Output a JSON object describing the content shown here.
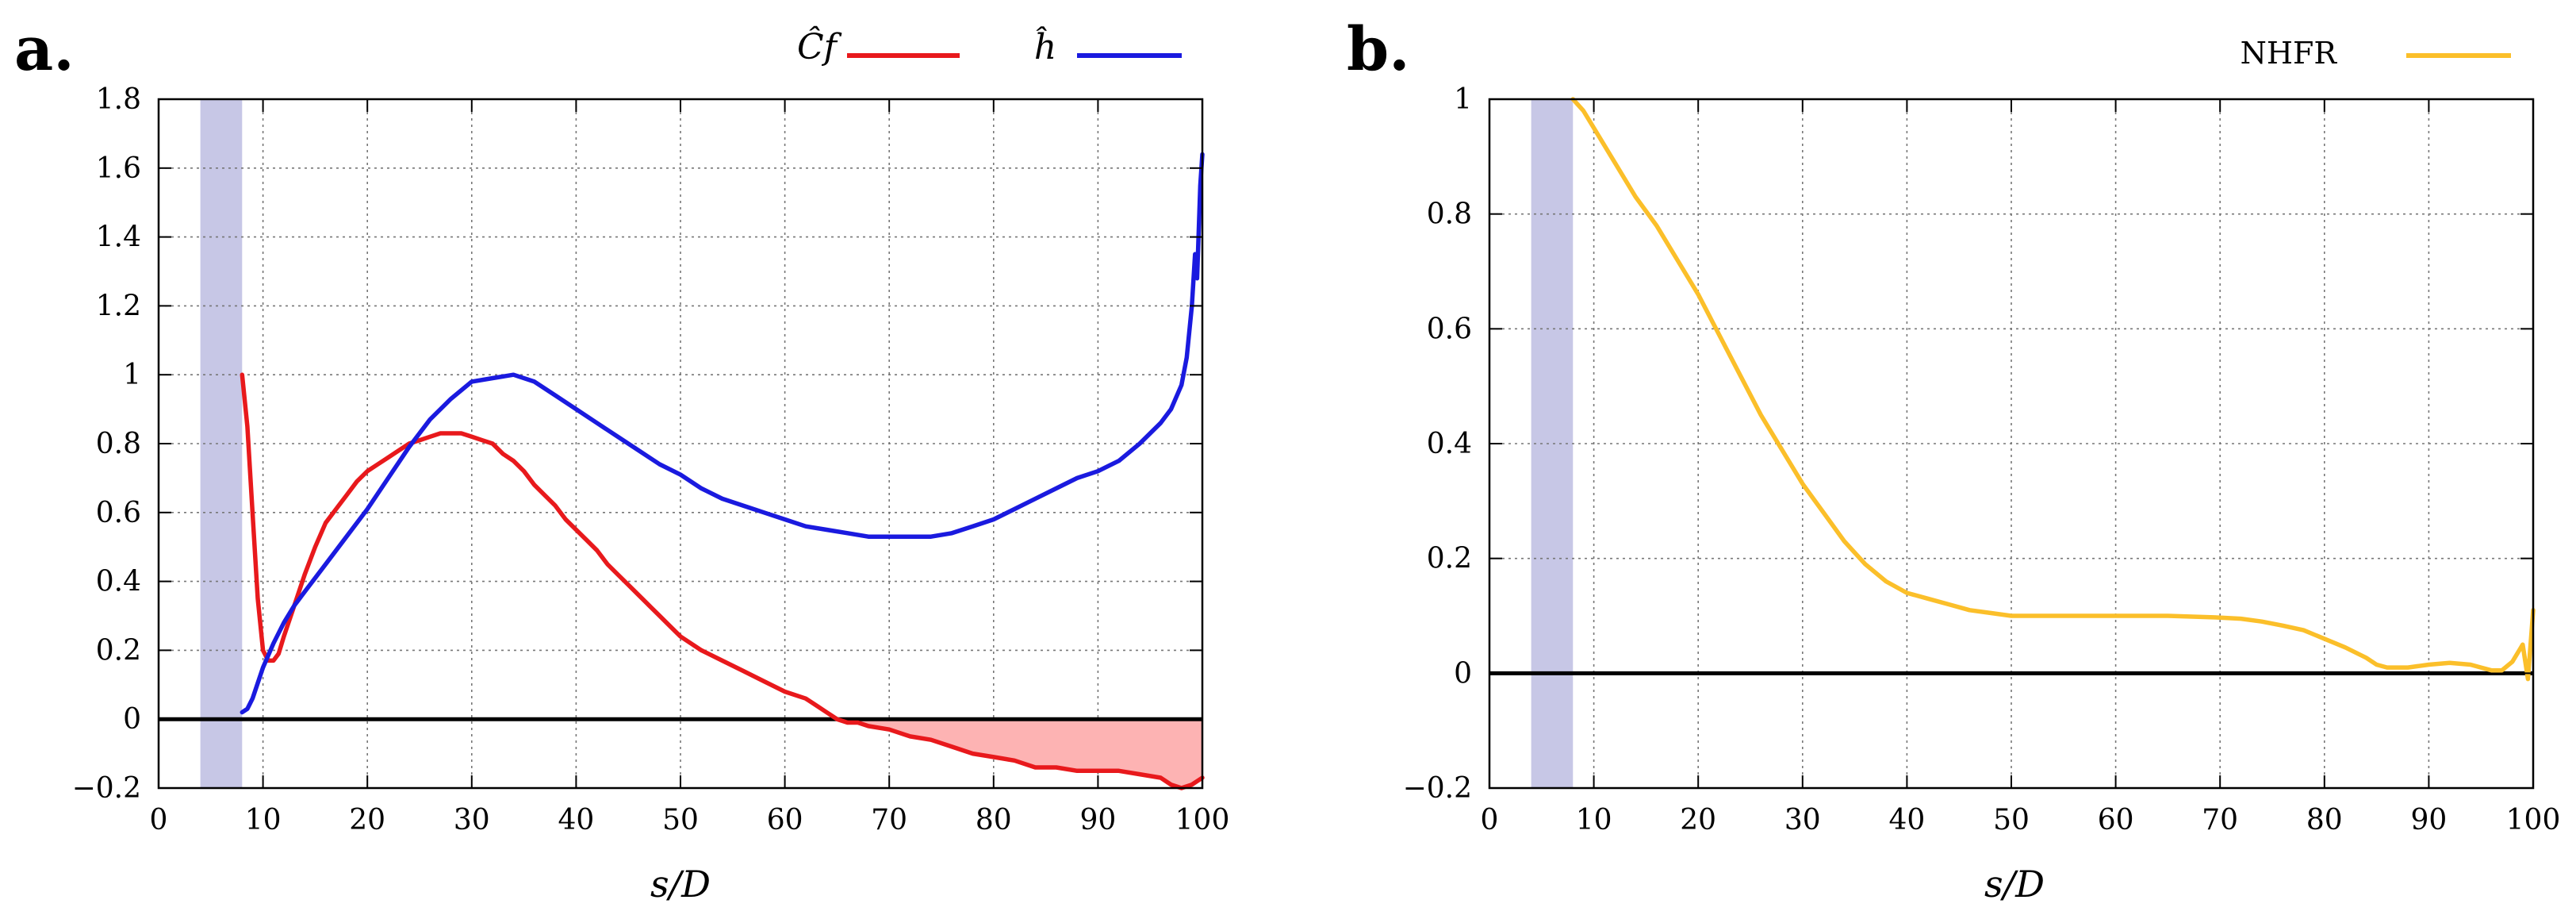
{
  "colors": {
    "cf": "#e8191c",
    "h": "#1a1adf",
    "nhfr": "#fbbf2a",
    "shade": "#c7c7e6",
    "negfill": "#fdb3b3",
    "grid": "#777777",
    "zero": "#000000"
  },
  "chart_data": [
    {
      "type": "line",
      "panel_label": "a.",
      "xlabel": "s/D",
      "xlim": [
        0,
        100
      ],
      "ylim": [
        -0.2,
        1.8
      ],
      "xticks": [
        0,
        10,
        20,
        30,
        40,
        50,
        60,
        70,
        80,
        90,
        100
      ],
      "yticks": [
        -0.2,
        0,
        0.2,
        0.4,
        0.6,
        0.8,
        1,
        1.2,
        1.4,
        1.6,
        1.8
      ],
      "ytick_labels": [
        "−0.2",
        "0",
        "0.2",
        "0.4",
        "0.6",
        "0.8",
        "1",
        "1.2",
        "1.4",
        "1.6",
        "1.8"
      ],
      "grid": true,
      "shaded_band_x": [
        4,
        8
      ],
      "zero_line": true,
      "negative_fill_series": "Cf",
      "legend_position": "top-right",
      "series": [
        {
          "name": "Cf",
          "legend": "Ĉf",
          "color_key": "cf",
          "x": [
            8,
            8.5,
            9,
            9.5,
            10,
            10.5,
            11,
            11.5,
            12,
            13,
            14,
            15,
            16,
            17,
            18,
            19,
            20,
            21,
            22,
            23,
            24,
            25,
            26,
            27,
            28,
            29,
            30,
            31,
            32,
            33,
            34,
            35,
            36,
            37,
            38,
            39,
            40,
            41,
            42,
            43,
            44,
            45,
            46,
            47,
            48,
            49,
            50,
            52,
            54,
            56,
            58,
            60,
            62,
            63,
            64,
            65,
            66,
            67,
            68,
            70,
            72,
            74,
            76,
            78,
            80,
            82,
            84,
            86,
            88,
            90,
            92,
            94,
            96,
            97,
            98,
            99,
            100
          ],
          "values": [
            1.0,
            0.85,
            0.6,
            0.35,
            0.2,
            0.17,
            0.17,
            0.19,
            0.24,
            0.33,
            0.42,
            0.5,
            0.57,
            0.61,
            0.65,
            0.69,
            0.72,
            0.74,
            0.76,
            0.78,
            0.8,
            0.81,
            0.82,
            0.83,
            0.83,
            0.83,
            0.82,
            0.81,
            0.8,
            0.77,
            0.75,
            0.72,
            0.68,
            0.65,
            0.62,
            0.58,
            0.55,
            0.52,
            0.49,
            0.45,
            0.42,
            0.39,
            0.36,
            0.33,
            0.3,
            0.27,
            0.24,
            0.2,
            0.17,
            0.14,
            0.11,
            0.08,
            0.06,
            0.04,
            0.02,
            0.0,
            -0.01,
            -0.01,
            -0.02,
            -0.03,
            -0.05,
            -0.06,
            -0.08,
            -0.1,
            -0.11,
            -0.12,
            -0.14,
            -0.14,
            -0.15,
            -0.15,
            -0.15,
            -0.16,
            -0.17,
            -0.19,
            -0.2,
            -0.19,
            -0.17
          ]
        },
        {
          "name": "h",
          "legend": "ĥ",
          "color_key": "h",
          "x": [
            8,
            8.5,
            9,
            10,
            11,
            12,
            13,
            14,
            16,
            18,
            20,
            22,
            24,
            26,
            28,
            30,
            32,
            34,
            36,
            38,
            40,
            42,
            44,
            46,
            48,
            50,
            52,
            54,
            56,
            58,
            60,
            62,
            64,
            66,
            68,
            70,
            72,
            74,
            76,
            78,
            80,
            82,
            84,
            86,
            88,
            90,
            92,
            94,
            95,
            96,
            97,
            98,
            98.5,
            99,
            99.3,
            99.5,
            99.8,
            100
          ],
          "values": [
            0.02,
            0.03,
            0.06,
            0.15,
            0.22,
            0.28,
            0.33,
            0.37,
            0.45,
            0.53,
            0.61,
            0.7,
            0.79,
            0.87,
            0.93,
            0.98,
            0.99,
            1.0,
            0.98,
            0.94,
            0.9,
            0.86,
            0.82,
            0.78,
            0.74,
            0.71,
            0.67,
            0.64,
            0.62,
            0.6,
            0.58,
            0.56,
            0.55,
            0.54,
            0.53,
            0.53,
            0.53,
            0.53,
            0.54,
            0.56,
            0.58,
            0.61,
            0.64,
            0.67,
            0.7,
            0.72,
            0.75,
            0.8,
            0.83,
            0.86,
            0.9,
            0.97,
            1.05,
            1.2,
            1.35,
            1.28,
            1.55,
            1.64
          ]
        }
      ]
    },
    {
      "type": "line",
      "panel_label": "b.",
      "xlabel": "s/D",
      "xlim": [
        0,
        100
      ],
      "ylim": [
        -0.2,
        1.0
      ],
      "xticks": [
        0,
        10,
        20,
        30,
        40,
        50,
        60,
        70,
        80,
        90,
        100
      ],
      "yticks": [
        -0.2,
        0,
        0.2,
        0.4,
        0.6,
        0.8,
        1
      ],
      "ytick_labels": [
        "−0.2",
        "0",
        "0.2",
        "0.4",
        "0.6",
        "0.8",
        "1"
      ],
      "grid": true,
      "shaded_band_x": [
        4,
        8
      ],
      "zero_line": true,
      "legend_position": "top-right",
      "series": [
        {
          "name": "NHFR",
          "legend": "NHFR",
          "color_key": "nhfr",
          "x": [
            8,
            9,
            10,
            12,
            14,
            16,
            18,
            20,
            22,
            24,
            26,
            28,
            30,
            32,
            34,
            36,
            38,
            40,
            42,
            44,
            46,
            48,
            50,
            55,
            60,
            65,
            70,
            72,
            74,
            76,
            78,
            80,
            82,
            84,
            85,
            86,
            88,
            90,
            92,
            94,
            95,
            96,
            97,
            98,
            99,
            99.5,
            100
          ],
          "values": [
            1.0,
            0.98,
            0.95,
            0.89,
            0.83,
            0.78,
            0.72,
            0.66,
            0.59,
            0.52,
            0.45,
            0.39,
            0.33,
            0.28,
            0.23,
            0.19,
            0.16,
            0.14,
            0.13,
            0.12,
            0.11,
            0.105,
            0.1,
            0.1,
            0.1,
            0.1,
            0.097,
            0.095,
            0.09,
            0.083,
            0.075,
            0.06,
            0.045,
            0.027,
            0.015,
            0.01,
            0.01,
            0.015,
            0.018,
            0.015,
            0.01,
            0.005,
            0.005,
            0.02,
            0.05,
            -0.01,
            0.11
          ]
        }
      ]
    }
  ]
}
